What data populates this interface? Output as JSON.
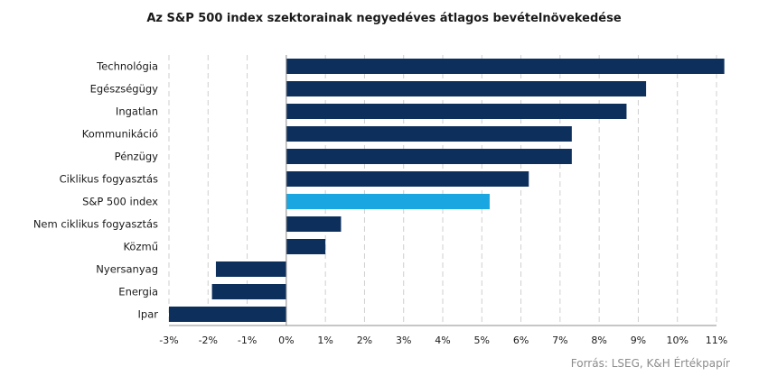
{
  "chart_data": {
    "type": "bar",
    "orientation": "horizontal",
    "title": "Az S&P 500 index szektorainak negyedéves átlagos bevételnövekedése",
    "source": "Forrás: LSEG, K&H Értékpapír",
    "categories": [
      "Technológia",
      "Egészségügy",
      "Ingatlan",
      "Kommunikáció",
      "Pénzügy",
      "Ciklikus fogyasztás",
      "S&P 500 index",
      "Nem ciklikus fogyasztás",
      "Közmű",
      "Nyersanyag",
      "Energia",
      "Ipar"
    ],
    "values": [
      11.2,
      9.2,
      8.7,
      7.3,
      7.3,
      6.2,
      5.2,
      1.4,
      1.0,
      -1.8,
      -1.9,
      -3.0
    ],
    "highlight": "S&P 500 index",
    "xlim": [
      -3,
      11
    ],
    "xticks": [
      -3,
      -2,
      -1,
      0,
      1,
      2,
      3,
      4,
      5,
      6,
      7,
      8,
      9,
      10,
      11
    ],
    "xtick_labels": [
      "-3%",
      "-2%",
      "-1%",
      "0%",
      "1%",
      "2%",
      "3%",
      "4%",
      "5%",
      "6%",
      "7%",
      "8%",
      "9%",
      "10%",
      "11%"
    ],
    "grid": "vertical dashed",
    "colors": {
      "bar": "#0d2f5c",
      "highlight": "#1aa6e0",
      "grid": "#cfcfcf",
      "axis": "#8c8c8c"
    }
  }
}
